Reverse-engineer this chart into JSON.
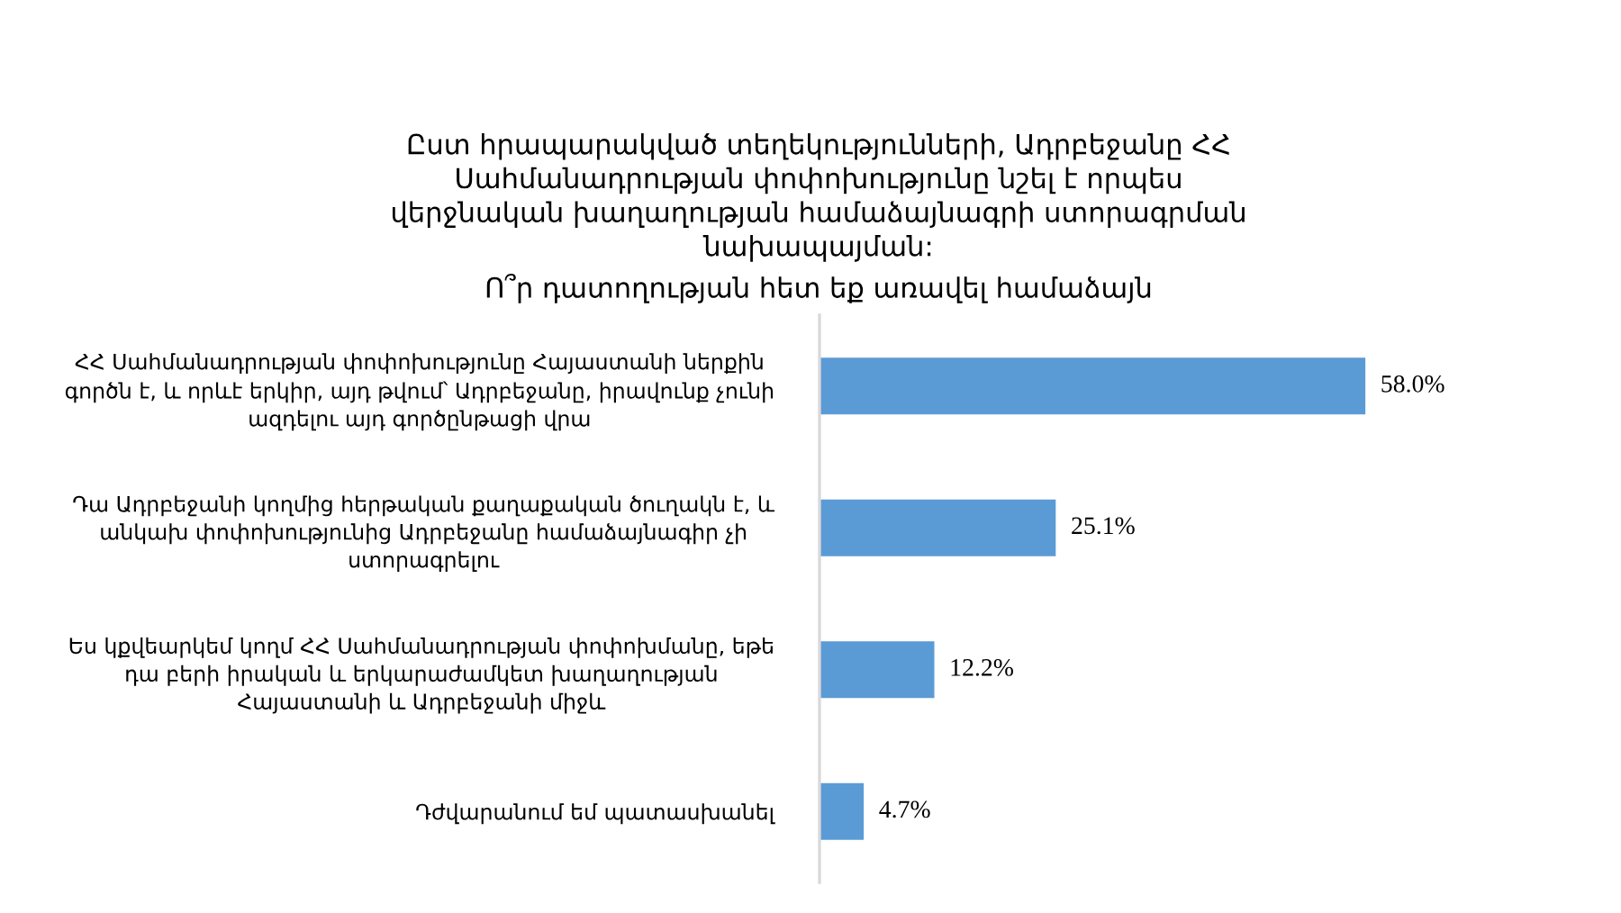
{
  "chart_data": {
    "type": "bar",
    "orientation": "horizontal",
    "title": "Ըստ հրապարակված տեղեկությունների, Ադրբեջանը ՀՀ\nՍահմանադրության փոփոխությունը նշել է որպես\nվերջնական խաղաղության համաձայնագրի ստորագրման\nնախապայման:",
    "subtitle": "Ո՞ր դատողության հետ եք առավել համաձայն",
    "categories": [
      "ՀՀ Սահմանադրության փոփոխությունը Հայաստանի ներքին\nգործն է, և որևէ երկիր, այդ թվում՝ Ադրբեջանը, իրավունք չունի\nազդելու այդ գործընթացի վրա",
      "Դա Ադրբեջանի կողմից հերթական քաղաքական ծուղակն է, և\nանկախ փոփոխությունից Ադրբեջանը համաձայնագիր չի\nստորագրելու",
      "Ես կքվեարկեմ կողմ ՀՀ Սահմանադրության փոփոխմանը, եթե\nդա բերի իրական և երկարաժամկետ խաղաղության\nՀայաստանի և Ադրբեջանի միջև",
      "Դժվարանում եմ պատասխանել"
    ],
    "values": [
      58.0,
      25.1,
      12.2,
      4.7
    ],
    "color": "#5b9bd5",
    "value_labels": [
      "58.0%",
      "25.1%",
      "12.2%",
      "4.7%"
    ],
    "tick_labels": "y"
  }
}
